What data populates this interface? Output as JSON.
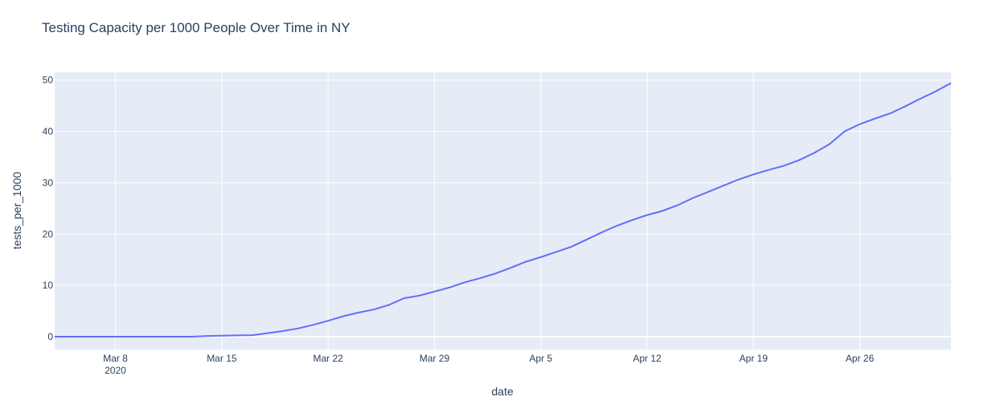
{
  "chart_data": {
    "type": "line",
    "title": "Testing Capacity per 1000 People Over Time in NY",
    "xlabel": "date",
    "ylabel": "tests_per_1000",
    "xlim": [
      "2020-03-04",
      "2020-05-02"
    ],
    "ylim": [
      -2.5,
      51.5
    ],
    "grid": true,
    "legend": "none",
    "x_ticks": [
      {
        "date": "2020-03-08",
        "label": "Mar 8",
        "sublabel": "2020"
      },
      {
        "date": "2020-03-15",
        "label": "Mar 15",
        "sublabel": ""
      },
      {
        "date": "2020-03-22",
        "label": "Mar 22",
        "sublabel": ""
      },
      {
        "date": "2020-03-29",
        "label": "Mar 29",
        "sublabel": ""
      },
      {
        "date": "2020-04-05",
        "label": "Apr 5",
        "sublabel": ""
      },
      {
        "date": "2020-04-12",
        "label": "Apr 12",
        "sublabel": ""
      },
      {
        "date": "2020-04-19",
        "label": "Apr 19",
        "sublabel": ""
      },
      {
        "date": "2020-04-26",
        "label": "Apr 26",
        "sublabel": ""
      }
    ],
    "y_ticks": [
      0,
      10,
      20,
      30,
      40,
      50
    ],
    "colors": {
      "line": "#636efa",
      "plot_bg": "#e5ecf6",
      "grid": "#ffffff"
    },
    "series": [
      {
        "x": [
          "2020-03-04",
          "2020-03-05",
          "2020-03-06",
          "2020-03-07",
          "2020-03-08",
          "2020-03-09",
          "2020-03-10",
          "2020-03-11",
          "2020-03-12",
          "2020-03-13",
          "2020-03-14",
          "2020-03-15",
          "2020-03-16",
          "2020-03-17",
          "2020-03-18",
          "2020-03-19",
          "2020-03-20",
          "2020-03-21",
          "2020-03-22",
          "2020-03-23",
          "2020-03-24",
          "2020-03-25",
          "2020-03-26",
          "2020-03-27",
          "2020-03-28",
          "2020-03-29",
          "2020-03-30",
          "2020-03-31",
          "2020-04-01",
          "2020-04-02",
          "2020-04-03",
          "2020-04-04",
          "2020-04-05",
          "2020-04-06",
          "2020-04-07",
          "2020-04-08",
          "2020-04-09",
          "2020-04-10",
          "2020-04-11",
          "2020-04-12",
          "2020-04-13",
          "2020-04-14",
          "2020-04-15",
          "2020-04-16",
          "2020-04-17",
          "2020-04-18",
          "2020-04-19",
          "2020-04-20",
          "2020-04-21",
          "2020-04-22",
          "2020-04-23",
          "2020-04-24",
          "2020-04-25",
          "2020-04-26",
          "2020-04-27",
          "2020-04-28",
          "2020-04-29",
          "2020-04-30",
          "2020-05-01",
          "2020-05-02"
        ],
        "values": [
          0.0,
          0.0,
          0.0,
          0.0,
          0.0,
          0.0,
          0.0,
          0.0,
          0.0,
          0.0,
          0.15,
          0.2,
          0.25,
          0.3,
          0.7,
          1.1,
          1.6,
          2.3,
          3.1,
          4.0,
          4.7,
          5.3,
          6.2,
          7.5,
          8.0,
          8.8,
          9.6,
          10.6,
          11.4,
          12.3,
          13.4,
          14.6,
          15.5,
          16.5,
          17.5,
          18.9,
          20.3,
          21.6,
          22.7,
          23.7,
          24.5,
          25.6,
          27.0,
          28.2,
          29.4,
          30.6,
          31.6,
          32.5,
          33.3,
          34.4,
          35.8,
          37.5,
          40.0,
          41.4,
          42.5,
          43.5,
          44.9,
          46.4,
          47.8,
          49.4
        ]
      }
    ]
  }
}
